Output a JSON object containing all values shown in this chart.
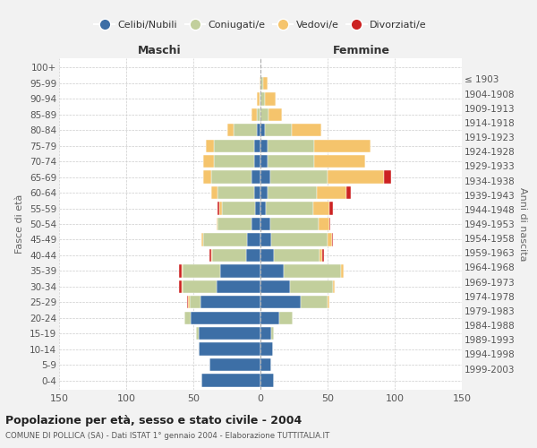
{
  "age_groups": [
    "0-4",
    "5-9",
    "10-14",
    "15-19",
    "20-24",
    "25-29",
    "30-34",
    "35-39",
    "40-44",
    "45-49",
    "50-54",
    "55-59",
    "60-64",
    "65-69",
    "70-74",
    "75-79",
    "80-84",
    "85-89",
    "90-94",
    "95-99",
    "100+"
  ],
  "birth_years": [
    "1999-2003",
    "1994-1998",
    "1989-1993",
    "1984-1988",
    "1979-1983",
    "1974-1978",
    "1969-1973",
    "1964-1968",
    "1959-1963",
    "1954-1958",
    "1949-1953",
    "1944-1948",
    "1939-1943",
    "1934-1938",
    "1929-1933",
    "1924-1928",
    "1919-1923",
    "1914-1918",
    "1909-1913",
    "1904-1908",
    "≤ 1903"
  ],
  "maschi": {
    "celibi": [
      44,
      38,
      46,
      46,
      52,
      45,
      33,
      30,
      11,
      10,
      7,
      4,
      5,
      7,
      5,
      5,
      3,
      0,
      0,
      0,
      0
    ],
    "coniugati": [
      0,
      0,
      0,
      2,
      5,
      8,
      25,
      28,
      25,
      33,
      25,
      25,
      27,
      30,
      30,
      30,
      17,
      3,
      1,
      0,
      0
    ],
    "vedovi": [
      0,
      0,
      0,
      0,
      0,
      1,
      1,
      1,
      1,
      1,
      1,
      2,
      5,
      6,
      8,
      6,
      5,
      4,
      2,
      1,
      0
    ],
    "divorziati": [
      0,
      0,
      0,
      0,
      0,
      1,
      2,
      2,
      1,
      0,
      0,
      1,
      0,
      0,
      0,
      0,
      0,
      0,
      0,
      0,
      0
    ]
  },
  "femmine": {
    "nubili": [
      10,
      8,
      9,
      8,
      14,
      30,
      22,
      17,
      10,
      8,
      7,
      4,
      5,
      7,
      5,
      5,
      3,
      0,
      0,
      0,
      0
    ],
    "coniugate": [
      0,
      0,
      0,
      2,
      10,
      20,
      32,
      43,
      34,
      42,
      36,
      35,
      37,
      43,
      35,
      35,
      20,
      6,
      3,
      2,
      0
    ],
    "vedove": [
      0,
      0,
      0,
      0,
      0,
      1,
      1,
      2,
      2,
      3,
      8,
      12,
      22,
      42,
      38,
      42,
      22,
      10,
      8,
      3,
      0
    ],
    "divorziate": [
      0,
      0,
      0,
      0,
      0,
      0,
      0,
      0,
      1,
      1,
      1,
      3,
      3,
      5,
      0,
      0,
      0,
      0,
      0,
      0,
      0
    ]
  },
  "colors": {
    "celibe": "#3D6FA6",
    "coniugato": "#C2CF9C",
    "vedovo": "#F5C46C",
    "divorziato": "#CC2222"
  },
  "xlim": 150,
  "title": "Popolazione per età, sesso e stato civile - 2004",
  "subtitle": "COMUNE DI POLLICA (SA) - Dati ISTAT 1° gennaio 2004 - Elaborazione TUTTITALIA.IT",
  "ylabel_left": "Fasce di età",
  "ylabel_right": "Anni di nascita",
  "xlabel_maschi": "Maschi",
  "xlabel_femmine": "Femmine",
  "background_color": "#f2f2f2",
  "plot_background": "#ffffff"
}
